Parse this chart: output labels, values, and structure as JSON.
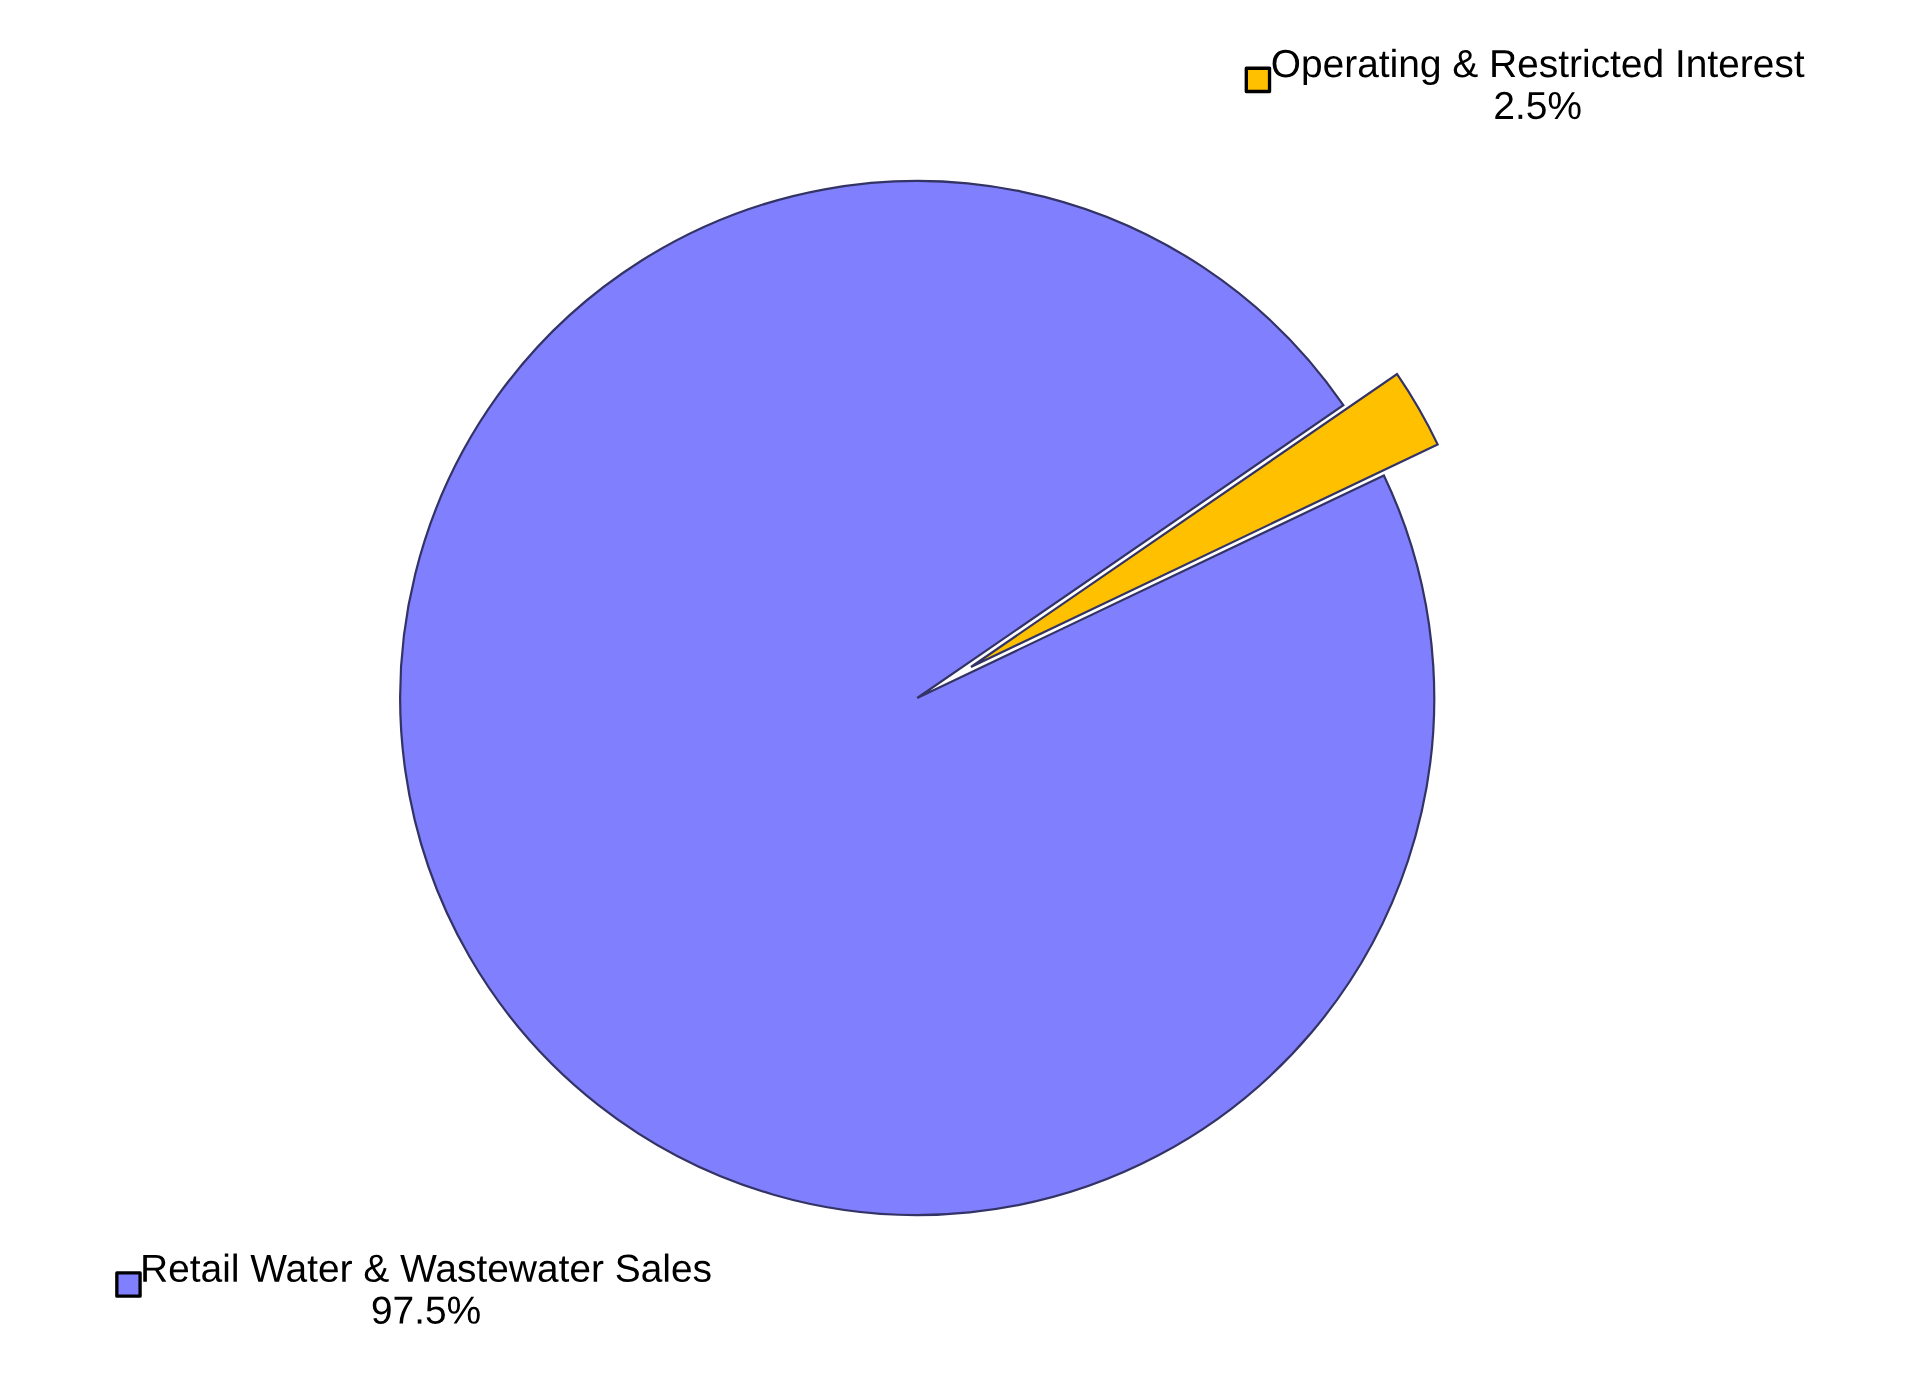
{
  "chart_data": {
    "type": "pie",
    "categories": [
      "Operating & Restricted Interest",
      "Retail Water & Wastewater Sales"
    ],
    "values": [
      2.5,
      97.5
    ],
    "colors": [
      "#ffc000",
      "#8080ff"
    ],
    "value_labels": [
      "2.5%",
      "97.5%"
    ],
    "legend": "right"
  }
}
